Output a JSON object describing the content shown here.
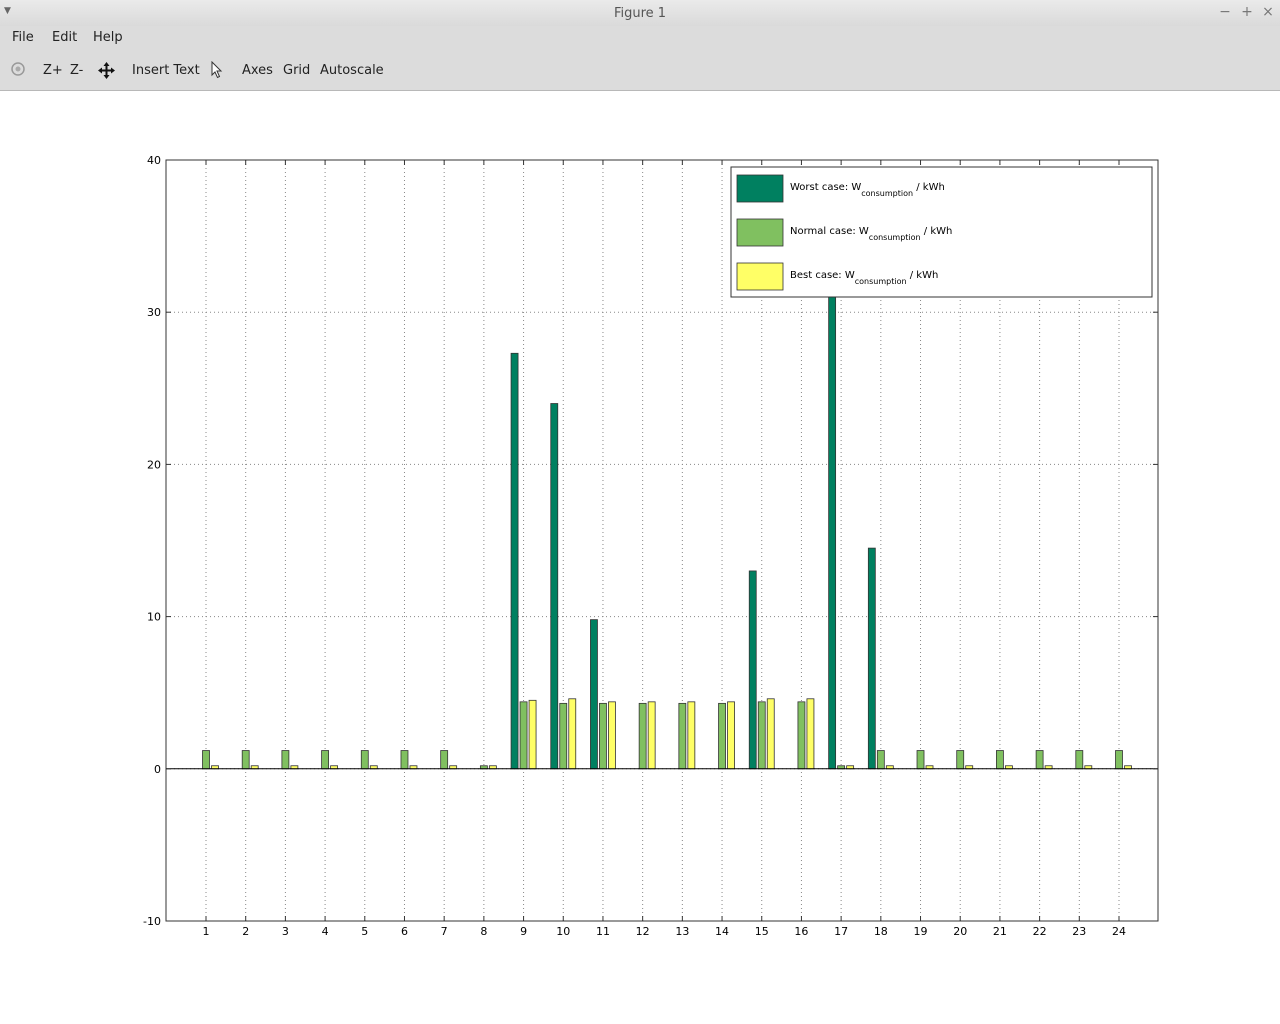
{
  "window": {
    "title": "Figure 1"
  },
  "menubar": {
    "items": [
      "File",
      "Edit",
      "Help"
    ]
  },
  "toolbar": {
    "zoom_in": "Z+",
    "zoom_out": "Z-",
    "insert_text": "Insert Text",
    "axes": "Axes",
    "grid": "Grid",
    "autoscale": "Autoscale"
  },
  "chart_data": {
    "type": "bar",
    "categories": [
      "1",
      "2",
      "3",
      "4",
      "5",
      "6",
      "7",
      "8",
      "9",
      "10",
      "11",
      "12",
      "13",
      "14",
      "15",
      "16",
      "17",
      "18",
      "19",
      "20",
      "21",
      "22",
      "23",
      "24"
    ],
    "ylim": [
      -10,
      40
    ],
    "yticks": [
      -10,
      0,
      10,
      20,
      30,
      40
    ],
    "grid": true,
    "legend_position": "top-right",
    "series": [
      {
        "name": "Worst case: W",
        "subscript": "consumption",
        "unit": " / kWh",
        "color": "#008060",
        "values": [
          0,
          0,
          0,
          0,
          0,
          0,
          0,
          0,
          27.3,
          24,
          9.8,
          0,
          0,
          0,
          13,
          0,
          31,
          14.5,
          0,
          0,
          0,
          0,
          0,
          0
        ]
      },
      {
        "name": "Normal case: W",
        "subscript": "consumption",
        "unit": " / kWh",
        "color": "#80c060",
        "values": [
          1.2,
          1.2,
          1.2,
          1.2,
          1.2,
          1.2,
          1.2,
          0.2,
          4.4,
          4.3,
          4.3,
          4.3,
          4.3,
          4.3,
          4.4,
          4.4,
          0.2,
          1.2,
          1.2,
          1.2,
          1.2,
          1.2,
          1.2,
          1.2
        ]
      },
      {
        "name": "Best case: W",
        "subscript": "consumption",
        "unit": " / kWh",
        "color": "#ffff66",
        "values": [
          0.2,
          0.2,
          0.2,
          0.2,
          0.2,
          0.2,
          0.2,
          0.2,
          4.5,
          4.6,
          4.4,
          4.4,
          4.4,
          4.4,
          4.6,
          4.6,
          0.2,
          0.2,
          0.2,
          0.2,
          0.2,
          0.2,
          0.2,
          0.2
        ]
      }
    ]
  }
}
